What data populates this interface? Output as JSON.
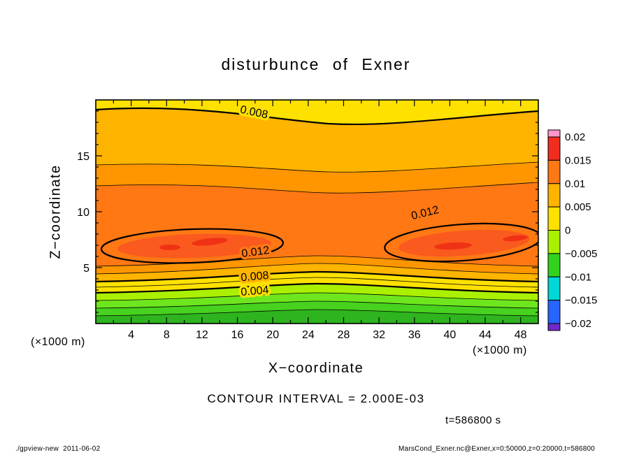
{
  "chart_data": {
    "type": "heatmap",
    "render_style": "filled-contour",
    "title": "disturbunce of Exner",
    "xlabel": "X−coordinate",
    "ylabel": "Z−coordinate",
    "axis_unit_label": "(×1000 m)",
    "xlim": [
      0,
      50
    ],
    "ylim": [
      0,
      20
    ],
    "x_ticks_major": [
      4,
      8,
      12,
      16,
      20,
      24,
      28,
      32,
      36,
      40,
      44,
      48
    ],
    "x_tick_minor_step": 2,
    "y_ticks_major": [
      5,
      10,
      15
    ],
    "y_tick_minor_step": 1,
    "contour_interval_label": "CONTOUR INTERVAL = 2.000E-03",
    "contour_interval": 0.002,
    "time_label": "t=586800 s",
    "colorbar": {
      "value_range": [
        -0.02,
        0.02
      ],
      "tick_labels": [
        "0.02",
        "0.015",
        "0.01",
        "0.005",
        "0",
        "−0.005",
        "−0.01",
        "−0.015",
        "−0.02"
      ],
      "colors_top_to_bottom": [
        "#ff96c8",
        "#f02d1e",
        "#ff7814",
        "#ffb400",
        "#ffe100",
        "#aaf000",
        "#32d21e",
        "#00d7d7",
        "#2864ff",
        "#6e28c8"
      ]
    },
    "palette": {
      "green_dark": "#2eb41e",
      "green": "#46d21e",
      "green_light": "#6ee61e",
      "chartreuse": "#aaf000",
      "yellow": "#ffe100",
      "amber": "#ffb400",
      "orange_light": "#ff9600",
      "orange": "#ff7814",
      "orange_deep": "#fa5a1e",
      "red": "#f03214"
    },
    "contour_labels": [
      {
        "text": "0.008",
        "value": 0.008,
        "x": 17.8,
        "z": 18.6,
        "rot": 12,
        "halo": "yellow"
      },
      {
        "text": "0.012",
        "value": 0.012,
        "x": 18.1,
        "z": 6.1,
        "rot": -8,
        "halo": "orange"
      },
      {
        "text": "0.012",
        "value": 0.012,
        "x": 37.3,
        "z": 9.6,
        "rot": -14,
        "halo": "orange"
      },
      {
        "text": "0.008",
        "value": 0.008,
        "x": 18.0,
        "z": 3.9,
        "rot": -5,
        "halo": "amber"
      },
      {
        "text": "0.004",
        "value": 0.004,
        "x": 18.0,
        "z": 2.6,
        "rot": -5,
        "halo": "yellow"
      }
    ],
    "features": {
      "maxima": [
        {
          "x": 12,
          "z": 7,
          "value_approx": 0.013
        },
        {
          "x": 41,
          "z": 7,
          "value_approx": 0.013
        }
      ],
      "visible_value_range": [
        0,
        0.013
      ],
      "approx_vertical_profile": [
        {
          "z": 0,
          "v": 0.001
        },
        {
          "z": 2.6,
          "v": 0.004
        },
        {
          "z": 4,
          "v": 0.008
        },
        {
          "z": 7,
          "v": 0.0125
        },
        {
          "z": 14,
          "v": 0.01
        },
        {
          "z": 20,
          "v": 0.0075
        }
      ]
    }
  },
  "footer": {
    "left": "./gpview-new  2011-06-02",
    "right": "MarsCond_Exner.nc@Exner,x=0:50000,z=0:20000,t=586800"
  }
}
